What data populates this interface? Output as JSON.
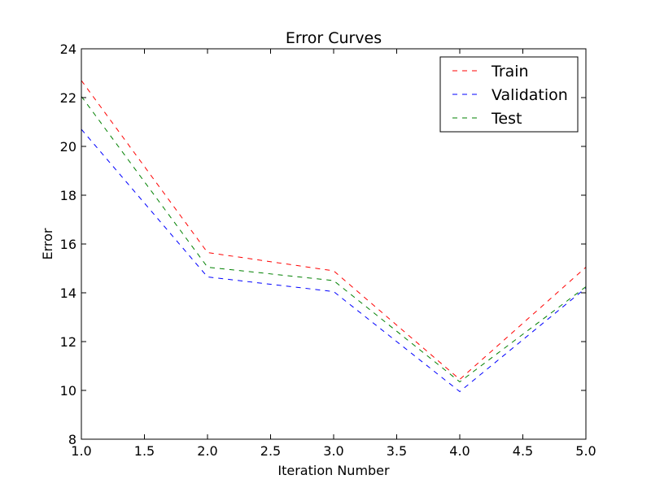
{
  "chart_data": {
    "type": "line",
    "title": "Error Curves",
    "xlabel": "Iteration Number",
    "ylabel": "Error",
    "xlim": [
      1.0,
      5.0
    ],
    "ylim": [
      8,
      24
    ],
    "xticks": [
      "1.0",
      "1.5",
      "2.0",
      "2.5",
      "3.0",
      "3.5",
      "4.0",
      "4.5",
      "5.0"
    ],
    "yticks": [
      "8",
      "10",
      "12",
      "14",
      "16",
      "18",
      "20",
      "22",
      "24"
    ],
    "grid": false,
    "legend_position": "top-right",
    "x": [
      1,
      2,
      3,
      4,
      5
    ],
    "series": [
      {
        "name": "Train",
        "color": "#ff0000",
        "style": "dashed",
        "values": [
          22.7,
          15.65,
          14.9,
          10.45,
          15.05
        ]
      },
      {
        "name": "Validation",
        "color": "#0000ff",
        "style": "dashed",
        "values": [
          20.7,
          14.65,
          14.05,
          9.95,
          14.2
        ]
      },
      {
        "name": "Test",
        "color": "#008000",
        "style": "dashed",
        "values": [
          22.05,
          15.05,
          14.5,
          10.35,
          14.25
        ]
      }
    ]
  }
}
